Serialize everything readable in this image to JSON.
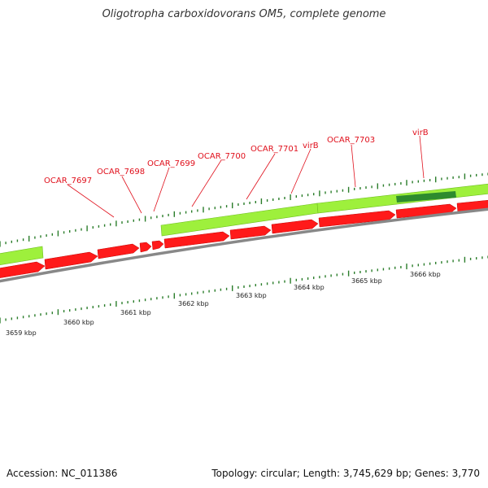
{
  "title": "Oligotropha carboxidovorans OM5, complete genome",
  "footer": {
    "accession": "Accession: NC_011386",
    "summary": "Topology: circular; Length: 3,745,629 bp; Genes: 3,770"
  },
  "colors": {
    "cds_forward": "#9ef03c",
    "cds_reverse": "#ff1a1a",
    "highlight_gene": "#2e8b2e",
    "backbone": "#888888",
    "tick": "#2a7d2a",
    "label": "#e0101c"
  },
  "gene_labels": [
    "OCAR_7697",
    "OCAR_7698",
    "OCAR_7699",
    "OCAR_7700",
    "OCAR_7701",
    "virB",
    "OCAR_7703",
    "virB"
  ],
  "scale_labels": [
    "3659 kbp",
    "3660 kbp",
    "3661 kbp",
    "3662 kbp",
    "3663 kbp",
    "3664 kbp",
    "3665 kbp",
    "3666 kbp"
  ]
}
